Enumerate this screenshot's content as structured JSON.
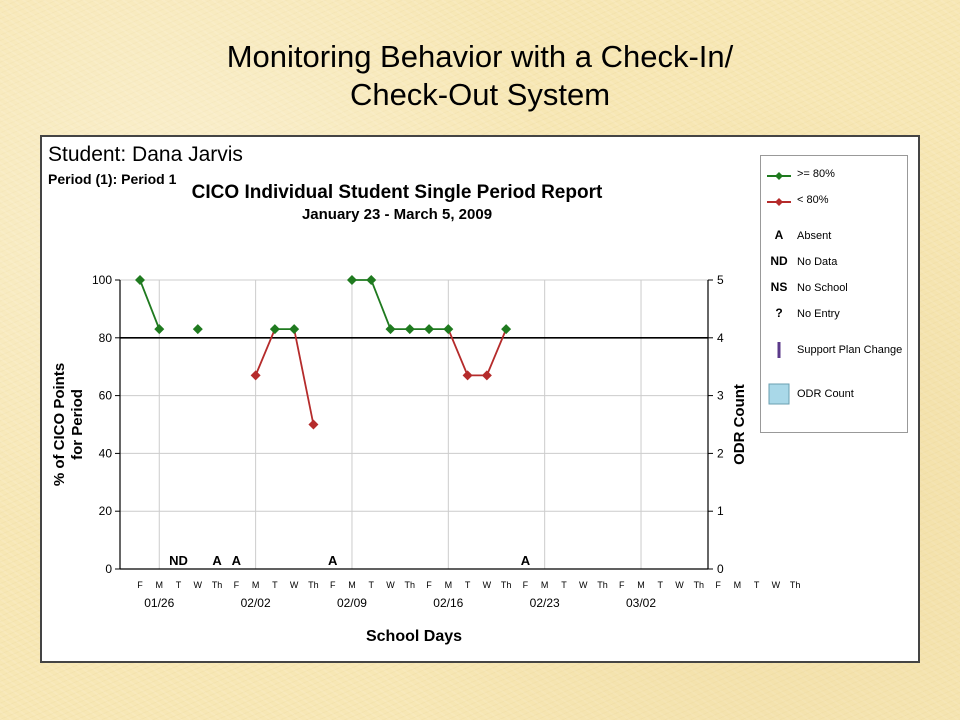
{
  "slide": {
    "title_line1": "Monitoring Behavior with a Check-In/",
    "title_line2": "Check-Out System"
  },
  "report": {
    "student": "Student: Dana Jarvis",
    "period": "Period (1): Period 1",
    "title": "CICO Individual Student Single Period Report",
    "date_range": "January 23 - March 5, 2009"
  },
  "legend": {
    "items": [
      {
        "symbol": "green-line-marker",
        "label": ">= 80%"
      },
      {
        "symbol": "red-line-marker",
        "label": "< 80%"
      },
      {
        "symbol": "A",
        "label": "Absent"
      },
      {
        "symbol": "ND",
        "label": "No Data"
      },
      {
        "symbol": "NS",
        "label": "No School"
      },
      {
        "symbol": "?",
        "label": "No Entry"
      },
      {
        "symbol": "purple-bar",
        "label": "Support Plan Change"
      },
      {
        "symbol": "light-blue-box",
        "label": "ODR Count"
      }
    ]
  },
  "chart_data": {
    "type": "line",
    "xlabel": "School Days",
    "ylabel": "% of CICO Points for Period",
    "y2label": "ODR Count",
    "ylim": [
      0,
      100
    ],
    "y_ticks": [
      0,
      20,
      40,
      60,
      80,
      100
    ],
    "y2lim": [
      0,
      5
    ],
    "y2_ticks": [
      0,
      1,
      2,
      3,
      4,
      5
    ],
    "goal_line": 80,
    "x_day_labels": [
      "F",
      "M",
      "T",
      "W",
      "Th",
      "F",
      "M",
      "T",
      "W",
      "Th",
      "F",
      "M",
      "T",
      "W",
      "Th",
      "F",
      "M",
      "T",
      "W",
      "Th",
      "F",
      "M",
      "T",
      "W",
      "Th",
      "F",
      "M",
      "T",
      "W",
      "Th",
      "F",
      "M",
      "T",
      "W",
      "Th"
    ],
    "x_week_labels": [
      {
        "index": 1,
        "label": "01/26"
      },
      {
        "index": 6,
        "label": "02/02"
      },
      {
        "index": 11,
        "label": "02/09"
      },
      {
        "index": 16,
        "label": "02/16"
      },
      {
        "index": 21,
        "label": "02/23"
      },
      {
        "index": 26,
        "label": "03/02"
      }
    ],
    "day_annotations": [
      {
        "index": 2,
        "label": "ND"
      },
      {
        "index": 4,
        "label": "A"
      },
      {
        "index": 5,
        "label": "A"
      },
      {
        "index": 10,
        "label": "A"
      },
      {
        "index": 20,
        "label": "A"
      }
    ],
    "values": [
      100,
      83,
      null,
      83,
      null,
      null,
      67,
      83,
      83,
      50,
      null,
      100,
      100,
      83,
      83,
      83,
      83,
      67,
      67,
      83,
      null,
      null,
      null,
      null,
      null,
      null,
      null,
      null,
      null,
      null
    ],
    "threshold": 80,
    "colors": {
      "above": "#1f7a1f",
      "below": "#b52b2b",
      "grid": "#cccccc",
      "axis": "#000000"
    }
  }
}
